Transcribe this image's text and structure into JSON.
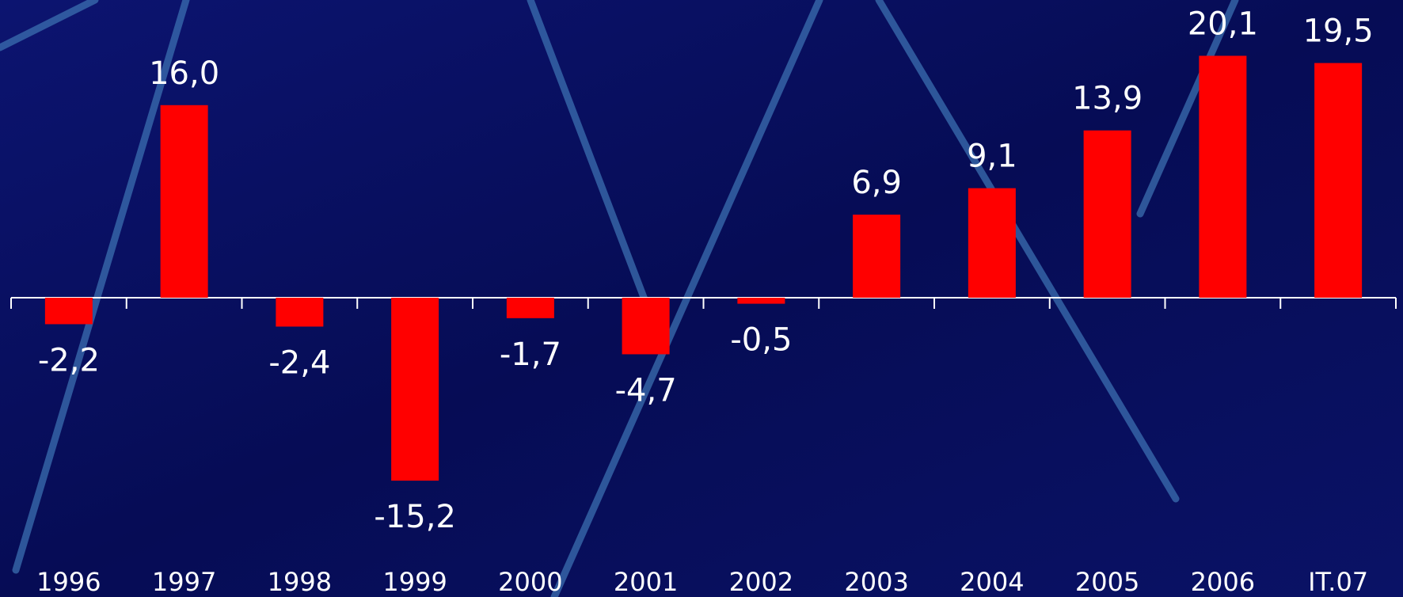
{
  "chart_data": {
    "type": "bar",
    "categories": [
      "1996",
      "1997",
      "1998",
      "1999",
      "2000",
      "2001",
      "2002",
      "2003",
      "2004",
      "2005",
      "2006",
      "IT.07"
    ],
    "values": [
      -2.2,
      16.0,
      -2.4,
      -15.2,
      -1.7,
      -4.7,
      -0.5,
      6.9,
      9.1,
      13.9,
      20.1,
      19.5
    ],
    "value_labels": [
      "-2,2",
      "16,0",
      "-2,4",
      "-15,2",
      "-1,7",
      "-4,7",
      "-0,5",
      "6,9",
      "9,1",
      "13,9",
      "20,1",
      "19,5"
    ],
    "color": "#ff0000"
  }
}
